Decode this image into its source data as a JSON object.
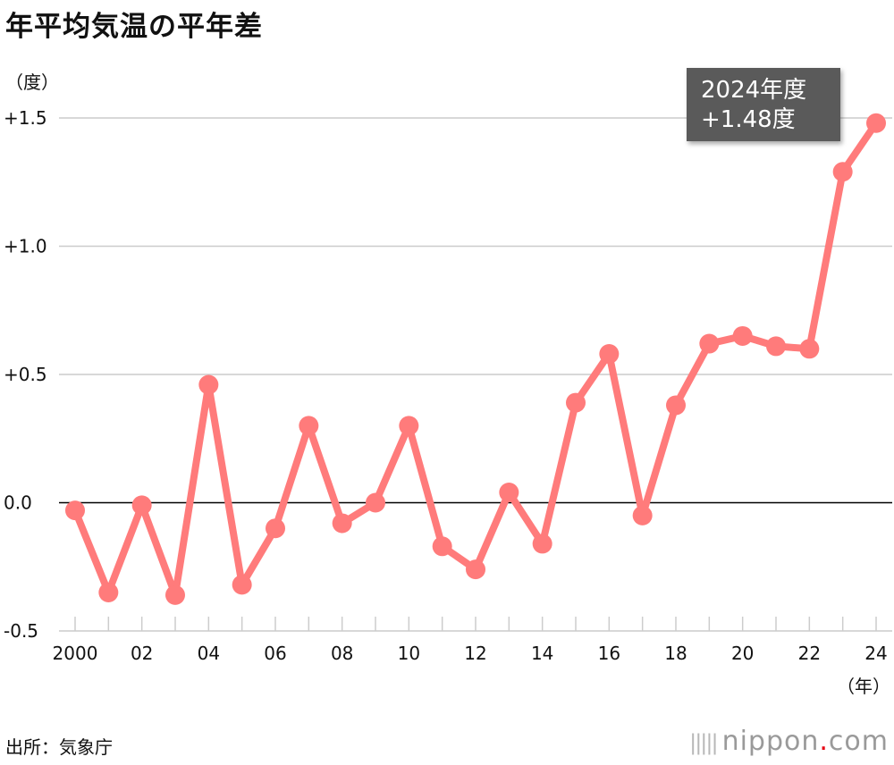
{
  "title": "年平均気温の平年差",
  "y_unit": "（度）",
  "x_unit": "（年）",
  "source": "出所：気象庁",
  "brand": {
    "name": "nippon",
    "dot": ".",
    "suffix": "com"
  },
  "callout": {
    "line1": "2024年度",
    "line2": "+1.48度"
  },
  "colors": {
    "line": "#ff7b7b",
    "grid": "#cccccc",
    "zero": "#000000",
    "callout_bg": "#5a5a5a"
  },
  "chart_data": {
    "type": "line",
    "title": "年平均気温の平年差",
    "ylabel": "（度）",
    "xlabel": "（年）",
    "ylim": [
      -0.5,
      1.5
    ],
    "yticks": [
      -0.5,
      0.0,
      0.5,
      1.0,
      1.5
    ],
    "ytick_labels": [
      "-0.5",
      "0.0",
      "+0.5",
      "+1.0",
      "+1.5"
    ],
    "xlim": [
      2000,
      2024
    ],
    "xticks": [
      2000,
      2002,
      2004,
      2006,
      2008,
      2010,
      2012,
      2014,
      2016,
      2018,
      2020,
      2022,
      2024
    ],
    "xtick_labels": [
      "2000",
      "02",
      "04",
      "06",
      "08",
      "10",
      "12",
      "14",
      "16",
      "18",
      "20",
      "22",
      "24"
    ],
    "grid": true,
    "series": [
      {
        "x": [
          2000,
          2001,
          2002,
          2003,
          2004,
          2005,
          2006,
          2007,
          2008,
          2009,
          2010,
          2011,
          2012,
          2013,
          2014,
          2015,
          2016,
          2017,
          2018,
          2019,
          2020,
          2021,
          2022,
          2023,
          2024
        ],
        "values": [
          -0.03,
          -0.35,
          -0.01,
          -0.36,
          0.46,
          -0.32,
          -0.1,
          0.3,
          -0.08,
          0.0,
          0.3,
          -0.17,
          -0.26,
          0.04,
          -0.16,
          0.39,
          0.58,
          -0.05,
          0.38,
          0.62,
          0.65,
          0.61,
          0.6,
          1.29,
          1.48
        ]
      }
    ],
    "annotation": "2024年度 +1.48度"
  }
}
